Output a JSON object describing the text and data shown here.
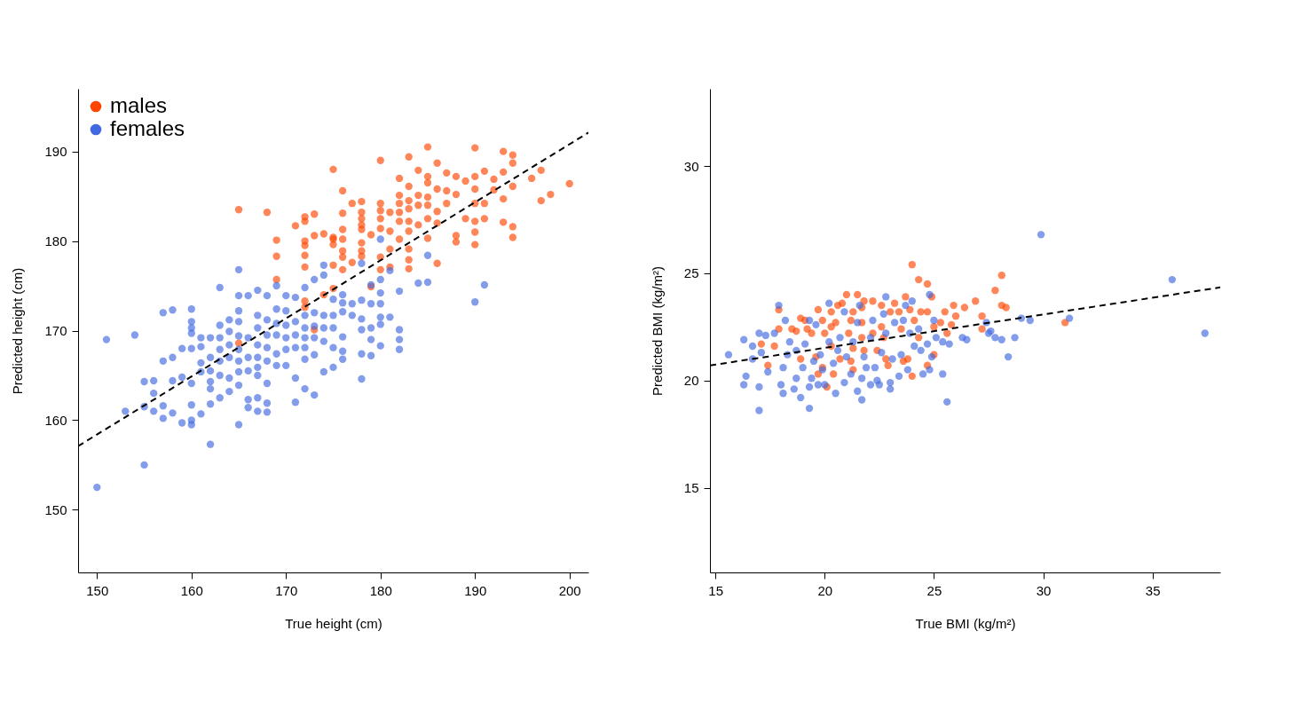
{
  "chart_data": [
    {
      "type": "scatter",
      "xlabel": "True height (cm)",
      "ylabel": "Predicted height (cm)",
      "xlim": [
        148,
        202
      ],
      "ylim": [
        143,
        197
      ],
      "xticks": [
        150,
        160,
        170,
        180,
        190,
        200
      ],
      "yticks": [
        150,
        160,
        170,
        180,
        190
      ],
      "legend": "top left",
      "marker": "circle",
      "grid": false,
      "series": [
        {
          "name": "males",
          "color": "#ff4500",
          "x": [
            165,
            168,
            165,
            169,
            169,
            169,
            171,
            172,
            172,
            172,
            172,
            172,
            172,
            172,
            172,
            173,
            173,
            173,
            174,
            174,
            175,
            175,
            175,
            175,
            175,
            175,
            176,
            176,
            176,
            176,
            176,
            176,
            176,
            177,
            177,
            178,
            178,
            178,
            178,
            178,
            178,
            178,
            178,
            179,
            179,
            180,
            180,
            180,
            180,
            180,
            180,
            180,
            181,
            181,
            181,
            181,
            182,
            182,
            182,
            182,
            182,
            182,
            183,
            183,
            183,
            183,
            183,
            183,
            183,
            183,
            183,
            184,
            184,
            184,
            184,
            185,
            185,
            185,
            185,
            185,
            185,
            185,
            186,
            186,
            186,
            186,
            186,
            187,
            187,
            187,
            188,
            188,
            188,
            188,
            189,
            189,
            190,
            190,
            190,
            190,
            190,
            190,
            190,
            191,
            191,
            191,
            192,
            192,
            193,
            193,
            193,
            193,
            194,
            194,
            194,
            194,
            194,
            196,
            197,
            197,
            198,
            200
          ],
          "values": [
            183.5,
            183.2,
            168.6,
            180.1,
            178.3,
            175.7,
            181.7,
            182.7,
            182.2,
            180,
            179.5,
            178.4,
            177.1,
            173.3,
            172.6,
            183,
            180.6,
            170.1,
            180.8,
            174,
            180.2,
            188,
            180.4,
            179.6,
            177.3,
            174.7,
            185.6,
            183.1,
            181.3,
            180.2,
            178.9,
            178.2,
            176.8,
            184.2,
            177.6,
            184.4,
            183.2,
            182.5,
            181.8,
            181.3,
            179.8,
            178.9,
            178.3,
            180.7,
            174.9,
            189,
            184.2,
            183.4,
            182.5,
            181.4,
            178.2,
            176.8,
            183.2,
            181.1,
            179.1,
            177.1,
            187,
            185.1,
            184.2,
            183.2,
            182.2,
            180.2,
            189.4,
            186.1,
            184.5,
            183.6,
            182.2,
            181.1,
            179.1,
            177.9,
            176.9,
            187.9,
            185.1,
            184,
            181.8,
            190.5,
            187.2,
            186.5,
            184.9,
            184,
            182.5,
            180.3,
            188.7,
            185.8,
            183.3,
            182,
            177.5,
            187.6,
            185.6,
            184.2,
            187.2,
            185.2,
            180.6,
            179.9,
            186.7,
            182.5,
            190.4,
            187.2,
            185.8,
            184.2,
            182.2,
            181,
            179.6,
            187.8,
            184.2,
            182.5,
            186.9,
            185.7,
            190,
            187.7,
            184.7,
            182.1,
            189.6,
            188.7,
            186.1,
            181.6,
            180.4,
            187,
            187.9,
            184.5,
            185.2,
            186.4
          ]
        },
        {
          "name": "females",
          "color": "#4169e1",
          "x": [
            150,
            151,
            154,
            155,
            153,
            155,
            155,
            156,
            156,
            156,
            157,
            158,
            157,
            158,
            157,
            157,
            158,
            158,
            159,
            159,
            159,
            160,
            160,
            160,
            160,
            160,
            160,
            160,
            160,
            160,
            161,
            161,
            161,
            161,
            161,
            162,
            162,
            162,
            162,
            162,
            162,
            162,
            163,
            163,
            163,
            163,
            163,
            163,
            163,
            164,
            164,
            164,
            164,
            164,
            164,
            165,
            165,
            165,
            165,
            165,
            165,
            165,
            165,
            165,
            165,
            166,
            166,
            166,
            166,
            166,
            166,
            167,
            167,
            167,
            167,
            167,
            167,
            167,
            167,
            167,
            168,
            168,
            168,
            168,
            168,
            168,
            168,
            168,
            169,
            169,
            169,
            169,
            169,
            169,
            170,
            170,
            170,
            170,
            170,
            170,
            171,
            171,
            171,
            171,
            171,
            171,
            172,
            172,
            172,
            172,
            172,
            172,
            172,
            173,
            173,
            173,
            173,
            173,
            173,
            174,
            174,
            174,
            174,
            174,
            174,
            175,
            175,
            175,
            175,
            175,
            176,
            176,
            176,
            176,
            176,
            176,
            177,
            177,
            178,
            178,
            178,
            178,
            178,
            178,
            179,
            179,
            179,
            179,
            179,
            180,
            180,
            180,
            180,
            180,
            180,
            180,
            181,
            181,
            182,
            182,
            182,
            182,
            184,
            185,
            185,
            190,
            191
          ],
          "values": [
            152.5,
            169,
            169.5,
            155,
            161,
            161.5,
            164.3,
            164.4,
            163,
            161,
            172,
            172.3,
            166.6,
            167,
            161.6,
            160.2,
            164.4,
            160.8,
            168,
            164.8,
            159.7,
            172.4,
            171,
            170.3,
            169.7,
            168,
            164.1,
            161.7,
            160,
            159.5,
            169.2,
            168.2,
            166.4,
            165.4,
            160.7,
            169.2,
            167,
            165.5,
            164.3,
            163.5,
            161.8,
            157.3,
            174.8,
            170.6,
            169.2,
            167.9,
            166.6,
            165,
            162.5,
            171.2,
            169.9,
            168.4,
            167,
            164.7,
            163.2,
            176.8,
            173.9,
            172.2,
            171,
            169.4,
            167.9,
            166.6,
            165.4,
            163.9,
            159.5,
            173.9,
            169.2,
            167,
            165.5,
            162.3,
            161.4,
            174.5,
            171.7,
            170.3,
            168.4,
            167,
            165.9,
            165,
            162.5,
            161,
            173.9,
            171.2,
            169.5,
            168.1,
            166.6,
            164.1,
            161.9,
            160.9,
            175,
            172.4,
            170.8,
            169.5,
            167.4,
            166.1,
            173.9,
            172.2,
            170.6,
            169.2,
            167.9,
            166.1,
            173.7,
            171,
            169.5,
            168.1,
            164.7,
            162,
            174.8,
            171.7,
            170.3,
            169.2,
            168.1,
            166.8,
            163.5,
            175.7,
            172,
            170.5,
            169.2,
            167.3,
            162.8,
            177.3,
            176.2,
            171.7,
            170.3,
            168.8,
            165.4,
            173.5,
            171.7,
            170.3,
            168.1,
            165.9,
            174,
            173.1,
            172.1,
            169.3,
            167.7,
            166.8,
            173,
            171.7,
            177.5,
            173.4,
            171.3,
            170.1,
            167.4,
            164.6,
            175.1,
            173,
            170.3,
            169,
            167.2,
            180.2,
            175.7,
            174.2,
            173,
            171.5,
            170.7,
            168.3,
            171.5,
            176.7,
            174.4,
            170.1,
            169,
            167.9,
            175.3,
            175.4,
            178.4,
            173.2,
            175.1
          ]
        },
        {
          "type": "line",
          "color": "#000000",
          "line_style": "dashed",
          "marker": "none",
          "x": [
            148,
            202
          ],
          "values": [
            157.1,
            192.1
          ]
        }
      ]
    },
    {
      "type": "scatter",
      "xlabel": "True BMI (kg/m²)",
      "ylabel": "Predicted BMI (kg/m²)",
      "xlim": [
        14.75,
        38.1
      ],
      "ylim": [
        11.05,
        33.6
      ],
      "xticks": [
        15,
        20,
        25,
        30,
        35
      ],
      "yticks": [
        15,
        20,
        25,
        30
      ],
      "legend": "top left",
      "marker": "circle",
      "grid": false,
      "series": [
        {
          "name": "males",
          "color": "#ff4500",
          "x": [
            17.1,
            17.4,
            17.7,
            17.9,
            17.9,
            18.5,
            18.7,
            18.9,
            18.9,
            19.1,
            19.2,
            19.4,
            19.6,
            19.7,
            19.7,
            19.9,
            19.9,
            20,
            20.1,
            20.3,
            20.3,
            20.3,
            20.4,
            20.5,
            20.6,
            20.8,
            20.7,
            21,
            21.1,
            21.2,
            21.2,
            21.3,
            21.3,
            21.3,
            21.5,
            21.7,
            21.7,
            21.7,
            21.8,
            21.8,
            22.2,
            22.2,
            22.4,
            22.6,
            22.6,
            22.7,
            22.8,
            22.9,
            23,
            23.2,
            23.4,
            23.5,
            23.6,
            23.7,
            23.8,
            23.9,
            24,
            24,
            24.1,
            24.3,
            24.3,
            24.4,
            24.7,
            24.7,
            24.7,
            24.9,
            25,
            25,
            25.3,
            25.5,
            25.6,
            25.8,
            25.9,
            26,
            26.4,
            26.9,
            27.2,
            27.2,
            27.8,
            28.1,
            28.1,
            28.3,
            31
          ],
          "values": [
            21.7,
            20.7,
            21.6,
            23.3,
            22.4,
            22.4,
            22.3,
            22.9,
            21,
            22.8,
            22.4,
            22.2,
            21.1,
            23.3,
            20.3,
            22.8,
            20.6,
            22.2,
            19.7,
            21.6,
            22.5,
            23.2,
            20.3,
            22.7,
            23.5,
            23.6,
            21,
            24,
            22.2,
            20.9,
            22.8,
            23.2,
            21.5,
            20.5,
            24,
            23.4,
            22.7,
            22,
            21.4,
            23.7,
            23.7,
            22.2,
            21.4,
            23.5,
            22.5,
            22,
            21,
            20.7,
            23.2,
            23.6,
            23.2,
            22.4,
            20.9,
            23.9,
            21,
            23.3,
            20.2,
            25.4,
            22.8,
            22,
            24.7,
            23.2,
            20.7,
            24.5,
            23.2,
            23.9,
            22.5,
            21.2,
            22.7,
            23.2,
            22.2,
            22.6,
            23.5,
            23,
            23.4,
            23.7,
            23,
            22.4,
            24.2,
            23.5,
            24.9,
            23.4,
            22.7
          ]
        },
        {
          "name": "females",
          "color": "#4169e1",
          "x": [
            15.6,
            16.3,
            16.3,
            16.4,
            16.7,
            16.7,
            17,
            17,
            17,
            17.1,
            17.3,
            17.4,
            17.7,
            17.9,
            18,
            18.1,
            18.1,
            18.2,
            18.3,
            18.4,
            18.6,
            18.7,
            18.7,
            18.9,
            19,
            19.1,
            19.3,
            19.3,
            19.3,
            19.4,
            19.5,
            19.6,
            19.7,
            19.8,
            19.9,
            20,
            20.2,
            20.2,
            20.4,
            20.5,
            20.6,
            20.7,
            20.9,
            20.9,
            21,
            21.2,
            21.3,
            21.5,
            21.5,
            21.6,
            21.7,
            21.7,
            21.8,
            21.9,
            22.1,
            22.1,
            22.2,
            22.3,
            22.4,
            22.5,
            22.6,
            22.7,
            22.8,
            22.8,
            23,
            23,
            23.1,
            23.2,
            23.4,
            23.5,
            23.6,
            23.7,
            23.8,
            23.9,
            24,
            24.1,
            24.3,
            24.4,
            24.5,
            24.7,
            24.8,
            24.8,
            24.9,
            25,
            25.1,
            25.4,
            25.4,
            25.6,
            25.7,
            26.3,
            26.5,
            27.4,
            27.5,
            27.6,
            27.8,
            28.1,
            28.4,
            28.7,
            29,
            29.4,
            29.9,
            31.2,
            35.9,
            37.4
          ],
          "values": [
            21.2,
            21.9,
            19.8,
            20.2,
            21,
            21.6,
            19.7,
            18.6,
            22.2,
            21.3,
            22.1,
            20.4,
            22.2,
            23.5,
            19.8,
            19.4,
            20.6,
            22.8,
            21.2,
            21.8,
            19.6,
            21.4,
            20.1,
            19.2,
            20.6,
            21.7,
            22.8,
            18.7,
            19.7,
            20.1,
            20.9,
            22.6,
            19.8,
            21.2,
            20.5,
            19.8,
            21.8,
            23.6,
            20.8,
            19.4,
            21.4,
            22,
            23.2,
            19.9,
            21.1,
            20.3,
            21.8,
            22.7,
            19.5,
            23.5,
            20.1,
            19.1,
            21.1,
            20.6,
            19.8,
            22,
            22.8,
            20.6,
            20,
            19.8,
            21.3,
            23.1,
            23.9,
            22.2,
            19.9,
            19.6,
            21,
            22.7,
            20.2,
            21.2,
            22.8,
            23.5,
            20.5,
            22.2,
            23.7,
            21.6,
            22.4,
            21.4,
            20.3,
            21.7,
            24,
            20.5,
            21.1,
            22.8,
            22,
            20.3,
            21.8,
            19,
            21.7,
            22,
            21.9,
            22.7,
            22.2,
            22.3,
            22,
            21.9,
            21.1,
            22,
            22.9,
            22.8,
            26.8,
            22.9,
            24.7,
            22.2
          ]
        },
        {
          "type": "line",
          "color": "#000000",
          "line_style": "dashed",
          "marker": "none",
          "x": [
            14.75,
            38.1
          ],
          "values": [
            20.7,
            24.34
          ]
        }
      ]
    }
  ]
}
